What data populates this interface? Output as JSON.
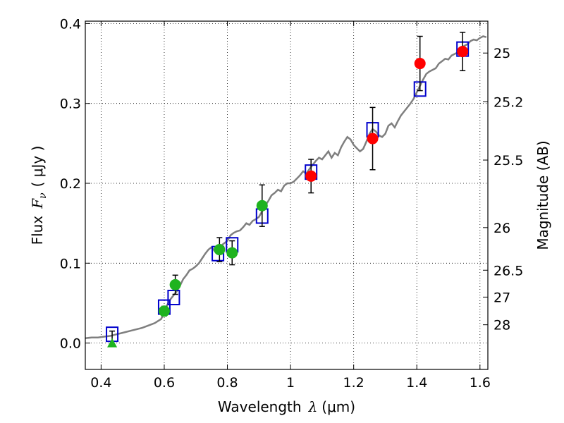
{
  "chart_data": {
    "type": "scatter",
    "xlabel_prefix": "Wavelength",
    "xlabel_symbol": "λ",
    "xlabel_unit": "(μm)",
    "ylabel_prefix": "Flux",
    "ylabel_symbol": "F",
    "ylabel_sub": "ν",
    "ylabel_unit": "( μJy )",
    "y2label": "Magnitude (AB)",
    "xlim": [
      0.35,
      1.625
    ],
    "ylim": [
      -0.033,
      0.403
    ],
    "x_ticks": [
      0.4,
      0.6,
      0.8,
      1,
      1.2,
      1.4,
      1.6
    ],
    "x_tick_labels": [
      "0.4",
      "0.6",
      "0.8",
      "1",
      "1.2",
      "1.4",
      "1.6"
    ],
    "y_ticks": [
      0.0,
      0.1,
      0.2,
      0.3,
      0.4
    ],
    "y_tick_labels": [
      "0.0",
      "0.1",
      "0.2",
      "0.3",
      "0.4"
    ],
    "mag_ticks": [
      25,
      25.2,
      25.5,
      26,
      26.5,
      27,
      28
    ],
    "mag_tick_labels": [
      "25",
      "25.2",
      "25.5",
      "26",
      "26.5",
      "27",
      "28"
    ],
    "grid": true,
    "colors": {
      "template": "#7f7f7f",
      "model_box": "#0000cc",
      "optical_points": "#1fb31f",
      "nir_points": "#ff0000",
      "upper_limit": "#1fb31f",
      "errorbar": "#000000"
    },
    "template_spectrum": {
      "x": [
        0.35,
        0.37,
        0.39,
        0.41,
        0.43,
        0.45,
        0.47,
        0.49,
        0.51,
        0.53,
        0.55,
        0.57,
        0.59,
        0.6,
        0.61,
        0.62,
        0.63,
        0.64,
        0.65,
        0.66,
        0.67,
        0.68,
        0.69,
        0.7,
        0.71,
        0.72,
        0.73,
        0.74,
        0.75,
        0.76,
        0.77,
        0.78,
        0.79,
        0.8,
        0.81,
        0.82,
        0.83,
        0.84,
        0.85,
        0.86,
        0.87,
        0.88,
        0.89,
        0.9,
        0.91,
        0.92,
        0.93,
        0.94,
        0.95,
        0.96,
        0.97,
        0.98,
        0.99,
        1.0,
        1.01,
        1.02,
        1.03,
        1.04,
        1.05,
        1.06,
        1.07,
        1.08,
        1.09,
        1.1,
        1.11,
        1.12,
        1.13,
        1.14,
        1.15,
        1.16,
        1.17,
        1.18,
        1.19,
        1.2,
        1.21,
        1.22,
        1.23,
        1.24,
        1.25,
        1.26,
        1.27,
        1.28,
        1.29,
        1.3,
        1.31,
        1.32,
        1.33,
        1.34,
        1.35,
        1.36,
        1.37,
        1.38,
        1.39,
        1.4,
        1.41,
        1.42,
        1.43,
        1.44,
        1.45,
        1.46,
        1.47,
        1.48,
        1.49,
        1.5,
        1.51,
        1.52,
        1.53,
        1.54,
        1.55,
        1.56,
        1.57,
        1.58,
        1.59,
        1.6,
        1.61,
        1.62
      ],
      "y": [
        0.006,
        0.007,
        0.007,
        0.008,
        0.009,
        0.011,
        0.013,
        0.015,
        0.017,
        0.019,
        0.022,
        0.025,
        0.03,
        0.038,
        0.048,
        0.055,
        0.06,
        0.065,
        0.072,
        0.08,
        0.085,
        0.091,
        0.093,
        0.096,
        0.1,
        0.106,
        0.112,
        0.117,
        0.12,
        0.115,
        0.118,
        0.122,
        0.125,
        0.128,
        0.135,
        0.138,
        0.14,
        0.141,
        0.145,
        0.15,
        0.148,
        0.153,
        0.155,
        0.158,
        0.165,
        0.172,
        0.178,
        0.185,
        0.188,
        0.192,
        0.19,
        0.197,
        0.2,
        0.2,
        0.202,
        0.206,
        0.21,
        0.215,
        0.212,
        0.218,
        0.223,
        0.228,
        0.232,
        0.23,
        0.235,
        0.24,
        0.232,
        0.238,
        0.235,
        0.245,
        0.252,
        0.258,
        0.255,
        0.248,
        0.244,
        0.24,
        0.243,
        0.252,
        0.262,
        0.268,
        0.265,
        0.26,
        0.258,
        0.262,
        0.272,
        0.275,
        0.27,
        0.278,
        0.285,
        0.29,
        0.295,
        0.3,
        0.306,
        0.314,
        0.322,
        0.33,
        0.337,
        0.34,
        0.342,
        0.344,
        0.35,
        0.353,
        0.356,
        0.355,
        0.36,
        0.362,
        0.364,
        0.366,
        0.372,
        0.374,
        0.378,
        0.38,
        0.379,
        0.382,
        0.384,
        0.383
      ]
    },
    "model_boxes": {
      "x": [
        0.435,
        0.6,
        0.63,
        0.77,
        0.815,
        0.91,
        1.065,
        1.26,
        1.41,
        1.545
      ],
      "y": [
        0.011,
        0.045,
        0.057,
        0.112,
        0.123,
        0.159,
        0.214,
        0.267,
        0.318,
        0.368
      ]
    },
    "optical_points": {
      "x": [
        0.6,
        0.635,
        0.775,
        0.815,
        0.91
      ],
      "y": [
        0.04,
        0.073,
        0.117,
        0.113,
        0.172
      ],
      "yerr": [
        0.006,
        0.012,
        0.015,
        0.015,
        0.026
      ]
    },
    "nir_points": {
      "x": [
        1.065,
        1.26,
        1.41,
        1.545
      ],
      "y": [
        0.209,
        0.256,
        0.35,
        0.365
      ],
      "yerr": [
        0.021,
        0.039,
        0.034,
        0.024
      ]
    },
    "upper_limit": {
      "x": [
        0.435
      ],
      "y": [
        0.0
      ],
      "err_upper": 0.015
    }
  }
}
